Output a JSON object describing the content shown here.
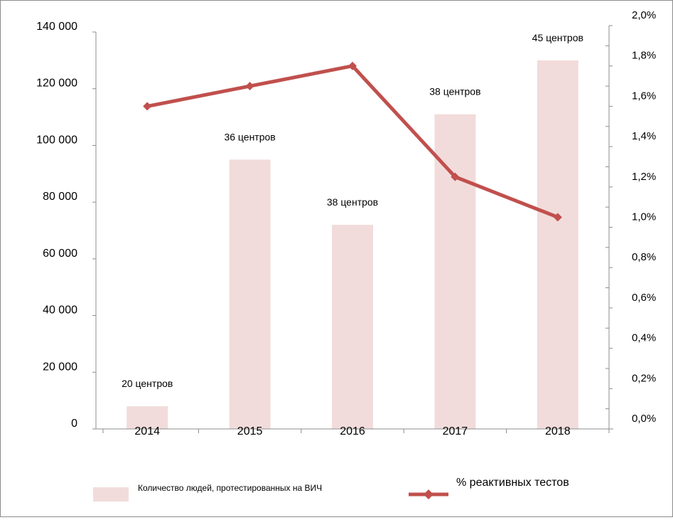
{
  "chart_data": {
    "type": "bar",
    "categories": [
      "2014",
      "2015",
      "2016",
      "2017",
      "2018"
    ],
    "series": [
      {
        "name": "Количество людей, протестированных на ВИЧ",
        "kind": "bar",
        "axis": "left",
        "values": [
          8000,
          95000,
          72000,
          111000,
          130000
        ],
        "labels": [
          "20 центров",
          "36 центров",
          "38 центров",
          "38 центров",
          "45 центров"
        ]
      },
      {
        "name": "% реактивных тестов",
        "kind": "line",
        "axis": "right",
        "values": [
          1.6,
          1.7,
          1.8,
          1.25,
          1.05
        ]
      }
    ],
    "y_left": {
      "min": 0,
      "max": 140000,
      "tick_labels": [
        "0",
        "20 000",
        "40 000",
        "60 000",
        "80 000",
        "100 000",
        "120 000",
        "140 000"
      ]
    },
    "y_right": {
      "min": 0,
      "max": 2.0,
      "tick_labels": [
        "0,0%",
        "0,2%",
        "0,4%",
        "0,6%",
        "0,8%",
        "1,0%",
        "1,2%",
        "1,4%",
        "1,6%",
        "1,8%",
        "2,0%"
      ]
    },
    "legend_position": "bottom",
    "grid": false,
    "colors": {
      "bar": "#f2dcdb",
      "line": "#c0504d"
    }
  }
}
